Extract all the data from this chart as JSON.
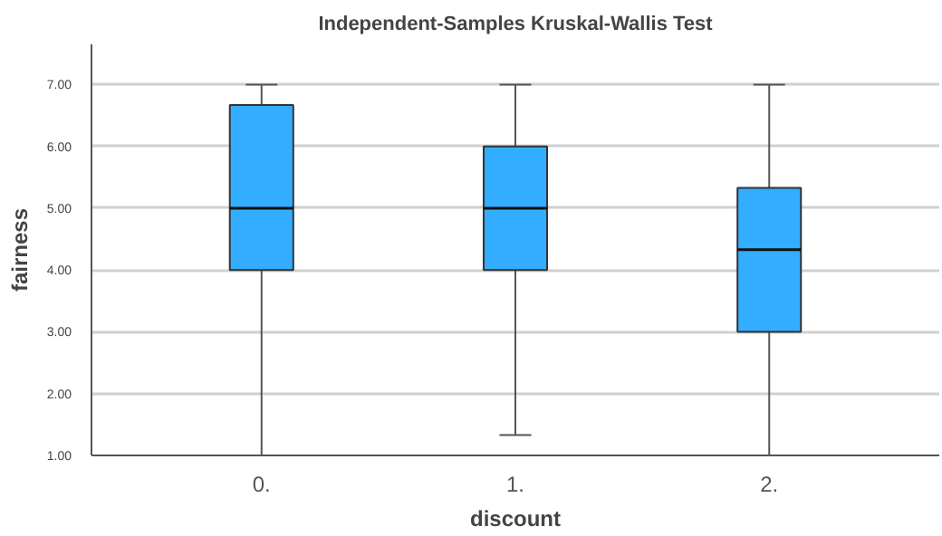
{
  "chart_data": {
    "type": "box",
    "title": "Independent-Samples Kruskal-Wallis Test",
    "xlabel": "discount",
    "ylabel": "fairness",
    "categories": [
      "0.",
      "1.",
      "2."
    ],
    "series": [
      {
        "color": "#33adff",
        "boxes": [
          {
            "low": 1.0,
            "q1": 4.0,
            "median": 5.0,
            "q3": 6.67,
            "high": 7.0
          },
          {
            "low": 1.33,
            "q1": 4.0,
            "median": 5.0,
            "q3": 6.0,
            "high": 7.0
          },
          {
            "low": 1.0,
            "q1": 3.0,
            "median": 4.33,
            "q3": 5.33,
            "high": 7.0
          }
        ]
      }
    ],
    "ylim": [
      1.0,
      7.65
    ],
    "yticks": [
      {
        "value": 1,
        "label": "1.00"
      },
      {
        "value": 2,
        "label": "2.00"
      },
      {
        "value": 3,
        "label": "3.00"
      },
      {
        "value": 4,
        "label": "4.00"
      },
      {
        "value": 5,
        "label": "5.00"
      },
      {
        "value": 6,
        "label": "6.00"
      },
      {
        "value": 7,
        "label": "7.00"
      }
    ],
    "grid": "y"
  }
}
